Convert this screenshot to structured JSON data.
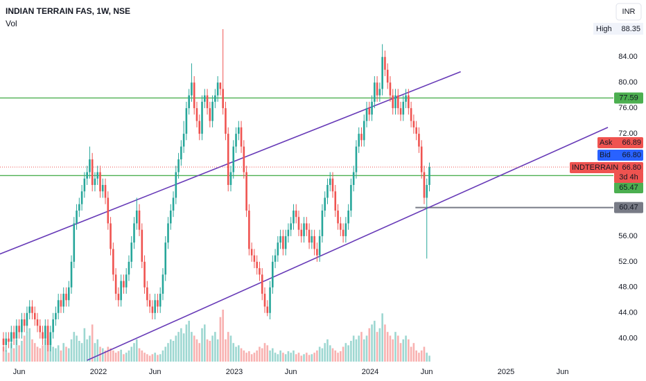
{
  "chart_data": {
    "type": "candlestick",
    "title": "INDIAN TERRAIN FAS, 1W, NSE",
    "volume_label": "Vol",
    "currency": "INR",
    "session_high": {
      "label": "High",
      "value": 88.35
    },
    "up_color": "#26a69a",
    "down_color": "#ef5350",
    "ylim": [
      36.4,
      92.9
    ],
    "yticks": [
      {
        "value": 84,
        "label": "84.00"
      },
      {
        "value": 80,
        "label": "80.00"
      },
      {
        "value": 76,
        "label": "76.00"
      },
      {
        "value": 72,
        "label": "72.00"
      },
      {
        "value": 56,
        "label": "56.00"
      },
      {
        "value": 52,
        "label": "52.00"
      },
      {
        "value": 48,
        "label": "48.00"
      },
      {
        "value": 44,
        "label": "44.00"
      },
      {
        "value": 40,
        "label": "40.00"
      }
    ],
    "xlim": [
      "2021-04",
      "2025-10"
    ],
    "xticks": [
      {
        "value": "2021-06",
        "label": "Jun"
      },
      {
        "value": "2022-01",
        "label": "2022"
      },
      {
        "value": "2022-06",
        "label": "Jun"
      },
      {
        "value": "2023-01",
        "label": "2023"
      },
      {
        "value": "2023-06",
        "label": "Jun"
      },
      {
        "value": "2024-01",
        "label": "2024"
      },
      {
        "value": "2024-06",
        "label": "Jun"
      },
      {
        "value": "2025-01",
        "label": "2025"
      },
      {
        "value": "2025-06",
        "label": "Jun"
      }
    ],
    "open": [
      40,
      39,
      40,
      39.5,
      41,
      40,
      42,
      41,
      43,
      42,
      44,
      45,
      44,
      43,
      42,
      41,
      40,
      42,
      39,
      41,
      43,
      44,
      46,
      45,
      47,
      46,
      48,
      52,
      58,
      60,
      61,
      63,
      65,
      66,
      68,
      64,
      65,
      66,
      63,
      64,
      62,
      58,
      54,
      50,
      47,
      46,
      49,
      48,
      50,
      52,
      55,
      58,
      60,
      57,
      52,
      48,
      46,
      45,
      44,
      46,
      45,
      47,
      50,
      55,
      58,
      60,
      62,
      66,
      68,
      70,
      72,
      76,
      78,
      80,
      76,
      74,
      72,
      77,
      78,
      76,
      74,
      77,
      78,
      80,
      79,
      76,
      72,
      64,
      66,
      70,
      72,
      73,
      70,
      66,
      60,
      54,
      53,
      52,
      51,
      50,
      47,
      45,
      44,
      48,
      52,
      53,
      55,
      56,
      54,
      56,
      57,
      58,
      60,
      59,
      57,
      56,
      58,
      57,
      55,
      56,
      54,
      53,
      56,
      60,
      62,
      64,
      65,
      63,
      60,
      58,
      57,
      56,
      58,
      60,
      64,
      66,
      70,
      72,
      71,
      74,
      76,
      75,
      77,
      80,
      78,
      79,
      84,
      82,
      80,
      78,
      76,
      78,
      76,
      75,
      77,
      78,
      76,
      74,
      73,
      72,
      70,
      66,
      62,
      64
    ],
    "high": [
      41,
      41,
      41,
      42,
      42,
      43,
      43,
      44,
      44,
      45,
      46,
      46,
      45,
      44,
      43,
      42,
      43,
      43,
      42,
      44,
      45,
      47,
      47,
      48,
      48,
      49,
      53,
      59,
      61,
      62,
      64,
      66,
      67,
      70,
      69,
      66,
      67,
      67,
      65,
      65,
      63,
      59,
      55,
      51,
      48,
      50,
      50,
      51,
      53,
      56,
      59,
      62,
      61,
      58,
      53,
      49,
      47,
      46,
      47,
      47,
      48,
      51,
      56,
      59,
      61,
      63,
      67,
      69,
      71,
      74,
      77,
      79,
      83,
      81,
      77,
      75,
      78,
      79,
      79,
      77,
      78,
      79,
      81,
      80,
      88.35,
      77,
      73,
      67,
      71,
      73,
      74,
      74,
      71,
      67,
      61,
      55,
      54,
      53,
      52,
      51,
      48,
      46,
      49,
      53,
      54,
      56,
      57,
      57,
      57,
      58,
      59,
      61,
      61,
      60,
      58,
      59,
      59,
      58,
      57,
      57,
      55,
      57,
      61,
      63,
      65,
      66,
      66,
      64,
      61,
      59,
      58,
      59,
      61,
      65,
      67,
      71,
      73,
      73,
      75,
      77,
      77,
      78,
      81,
      81,
      80,
      86,
      85,
      83,
      81,
      79,
      79,
      79,
      77,
      78,
      79,
      79,
      77,
      75,
      74,
      73,
      71,
      67,
      65,
      67.5
    ],
    "low": [
      38,
      38,
      38.5,
      38.5,
      39,
      39,
      40,
      40,
      41,
      41,
      43,
      43,
      42,
      41,
      40,
      39,
      39,
      38,
      38,
      40,
      42,
      43,
      44,
      44,
      45,
      45,
      47,
      51,
      57,
      59,
      60,
      62,
      64,
      65,
      63,
      63,
      64,
      62,
      62,
      61,
      57,
      53,
      49,
      46,
      45,
      45,
      47,
      47,
      49,
      51,
      54,
      57,
      56,
      51,
      47,
      45,
      44,
      43,
      43,
      44,
      44,
      46,
      49,
      54,
      57,
      59,
      61,
      65,
      67,
      69,
      71,
      75,
      77,
      75,
      73,
      71,
      71,
      76,
      75,
      73,
      73,
      76,
      77,
      78,
      75,
      71,
      63,
      63,
      65,
      69,
      71,
      69,
      65,
      59,
      53,
      52,
      51,
      50,
      49,
      46,
      44,
      43.5,
      43,
      47,
      51,
      52,
      54,
      53,
      53,
      55,
      56,
      57,
      58,
      56,
      55,
      55,
      56,
      54,
      54,
      53,
      52,
      52,
      55,
      59,
      61,
      63,
      62,
      59,
      57,
      56,
      55,
      55,
      57,
      59,
      63,
      65,
      69,
      70,
      70,
      73,
      74,
      74,
      76,
      77,
      77,
      78,
      81,
      79,
      77,
      75,
      75,
      75,
      74,
      74,
      76,
      75,
      73,
      72,
      71,
      69,
      65,
      61,
      52.5,
      63
    ],
    "close": [
      39,
      40,
      39.5,
      41,
      40,
      42,
      41,
      43,
      42,
      44,
      45,
      44,
      43,
      42,
      41,
      40,
      42,
      39,
      41,
      43,
      44,
      46,
      45,
      47,
      46,
      48,
      52,
      58,
      60,
      61,
      63,
      65,
      66,
      68,
      64,
      65,
      66,
      63,
      64,
      62,
      58,
      54,
      50,
      47,
      46,
      49,
      48,
      50,
      52,
      55,
      58,
      60,
      57,
      52,
      48,
      46,
      45,
      44,
      46,
      45,
      47,
      50,
      55,
      58,
      60,
      62,
      66,
      68,
      70,
      72,
      76,
      78,
      80,
      76,
      74,
      72,
      77,
      78,
      76,
      74,
      77,
      78,
      80,
      79,
      76,
      72,
      64,
      66,
      70,
      72,
      73,
      70,
      66,
      60,
      54,
      53,
      52,
      51,
      50,
      47,
      45,
      44,
      48,
      52,
      53,
      55,
      56,
      54,
      56,
      57,
      58,
      60,
      59,
      57,
      56,
      58,
      57,
      55,
      56,
      54,
      53,
      56,
      60,
      62,
      64,
      65,
      63,
      60,
      58,
      57,
      56,
      58,
      60,
      64,
      66,
      70,
      72,
      71,
      74,
      76,
      75,
      77,
      80,
      78,
      79,
      84,
      82,
      80,
      78,
      76,
      78,
      76,
      75,
      77,
      78,
      76,
      74,
      73,
      72,
      70,
      66,
      62,
      64,
      66.8
    ],
    "volume": [
      20,
      15,
      12,
      25,
      18,
      30,
      22,
      28,
      35,
      40,
      45,
      30,
      25,
      20,
      18,
      22,
      30,
      35,
      28,
      20,
      18,
      22,
      15,
      25,
      20,
      18,
      30,
      40,
      35,
      28,
      25,
      45,
      30,
      35,
      50,
      25,
      30,
      20,
      18,
      15,
      20,
      18,
      15,
      12,
      14,
      16,
      10,
      12,
      15,
      20,
      25,
      30,
      18,
      15,
      12,
      10,
      8,
      10,
      12,
      9,
      10,
      15,
      20,
      25,
      30,
      28,
      35,
      40,
      45,
      38,
      50,
      55,
      40,
      35,
      30,
      25,
      45,
      50,
      30,
      28,
      35,
      40,
      30,
      60,
      70,
      30,
      40,
      35,
      25,
      20,
      22,
      18,
      15,
      12,
      14,
      10,
      12,
      15,
      20,
      18,
      25,
      22,
      15,
      18,
      12,
      10,
      15,
      12,
      10,
      14,
      12,
      15,
      10,
      12,
      8,
      10,
      12,
      9,
      10,
      12,
      15,
      20,
      18,
      25,
      30,
      22,
      18,
      15,
      12,
      14,
      20,
      25,
      22,
      28,
      35,
      30,
      35,
      40,
      30,
      35,
      45,
      50,
      55,
      40,
      45,
      65,
      50,
      40,
      35,
      30,
      40,
      35,
      25,
      30,
      35,
      30,
      20,
      25,
      15,
      12,
      15,
      20,
      12,
      8
    ],
    "horizontal_lines": [
      {
        "value": 77.59,
        "color": "#4caf50"
      },
      {
        "value": 65.47,
        "color": "#4caf50"
      },
      {
        "value": 60.47,
        "color": "#787b86",
        "start": "2024-05"
      }
    ],
    "trendlines": [
      {
        "x": [
          "2021-04",
          "2024-09"
        ],
        "y": [
          53.0,
          81.7
        ],
        "color": "#673ab7"
      },
      {
        "x": [
          "2021-12",
          "2025-10"
        ],
        "y": [
          36.6,
          73.0
        ],
        "color": "#673ab7"
      }
    ],
    "quote": {
      "ask_label": "Ask",
      "ask": 66.89,
      "bid_label": "Bid",
      "bid": {
        "value": 66.8,
        "label": "66.80"
      },
      "symbol": "INDTERRAIN",
      "last": {
        "value": 66.8,
        "label": "66.80"
      },
      "countdown": "3d 4h"
    }
  }
}
